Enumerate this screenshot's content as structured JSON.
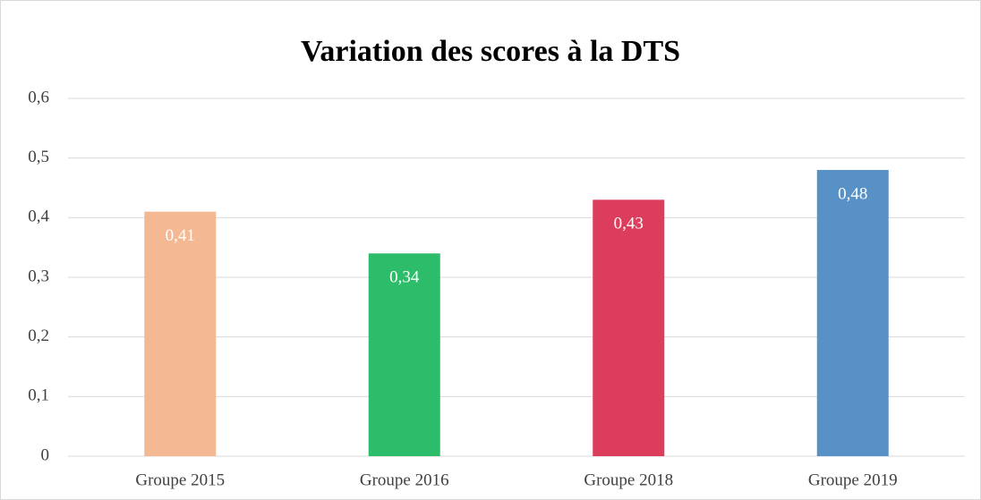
{
  "chart_data": {
    "type": "bar",
    "title": "Variation des scores à la DTS",
    "categories": [
      "Groupe 2015",
      "Groupe 2016",
      "Groupe 2018",
      "Groupe 2019"
    ],
    "values": [
      0.41,
      0.34,
      0.43,
      0.48
    ],
    "value_labels": [
      "0,41",
      "0,34",
      "0,43",
      "0,48"
    ],
    "colors": [
      "#f4b993",
      "#2dbd6a",
      "#dc3d5d",
      "#5891c6"
    ],
    "ylim": [
      0,
      0.6
    ],
    "yticks": [
      0,
      {
        "value": 0.1,
        "label": "0,1"
      },
      {
        "value": 0.2,
        "label": "0,2"
      },
      {
        "value": 0.3,
        "label": "0,3"
      },
      {
        "value": 0.4,
        "label": "0,4"
      },
      {
        "value": 0.5,
        "label": "0,5"
      },
      {
        "value": 0.6,
        "label": "0,6"
      }
    ],
    "grid": true
  }
}
